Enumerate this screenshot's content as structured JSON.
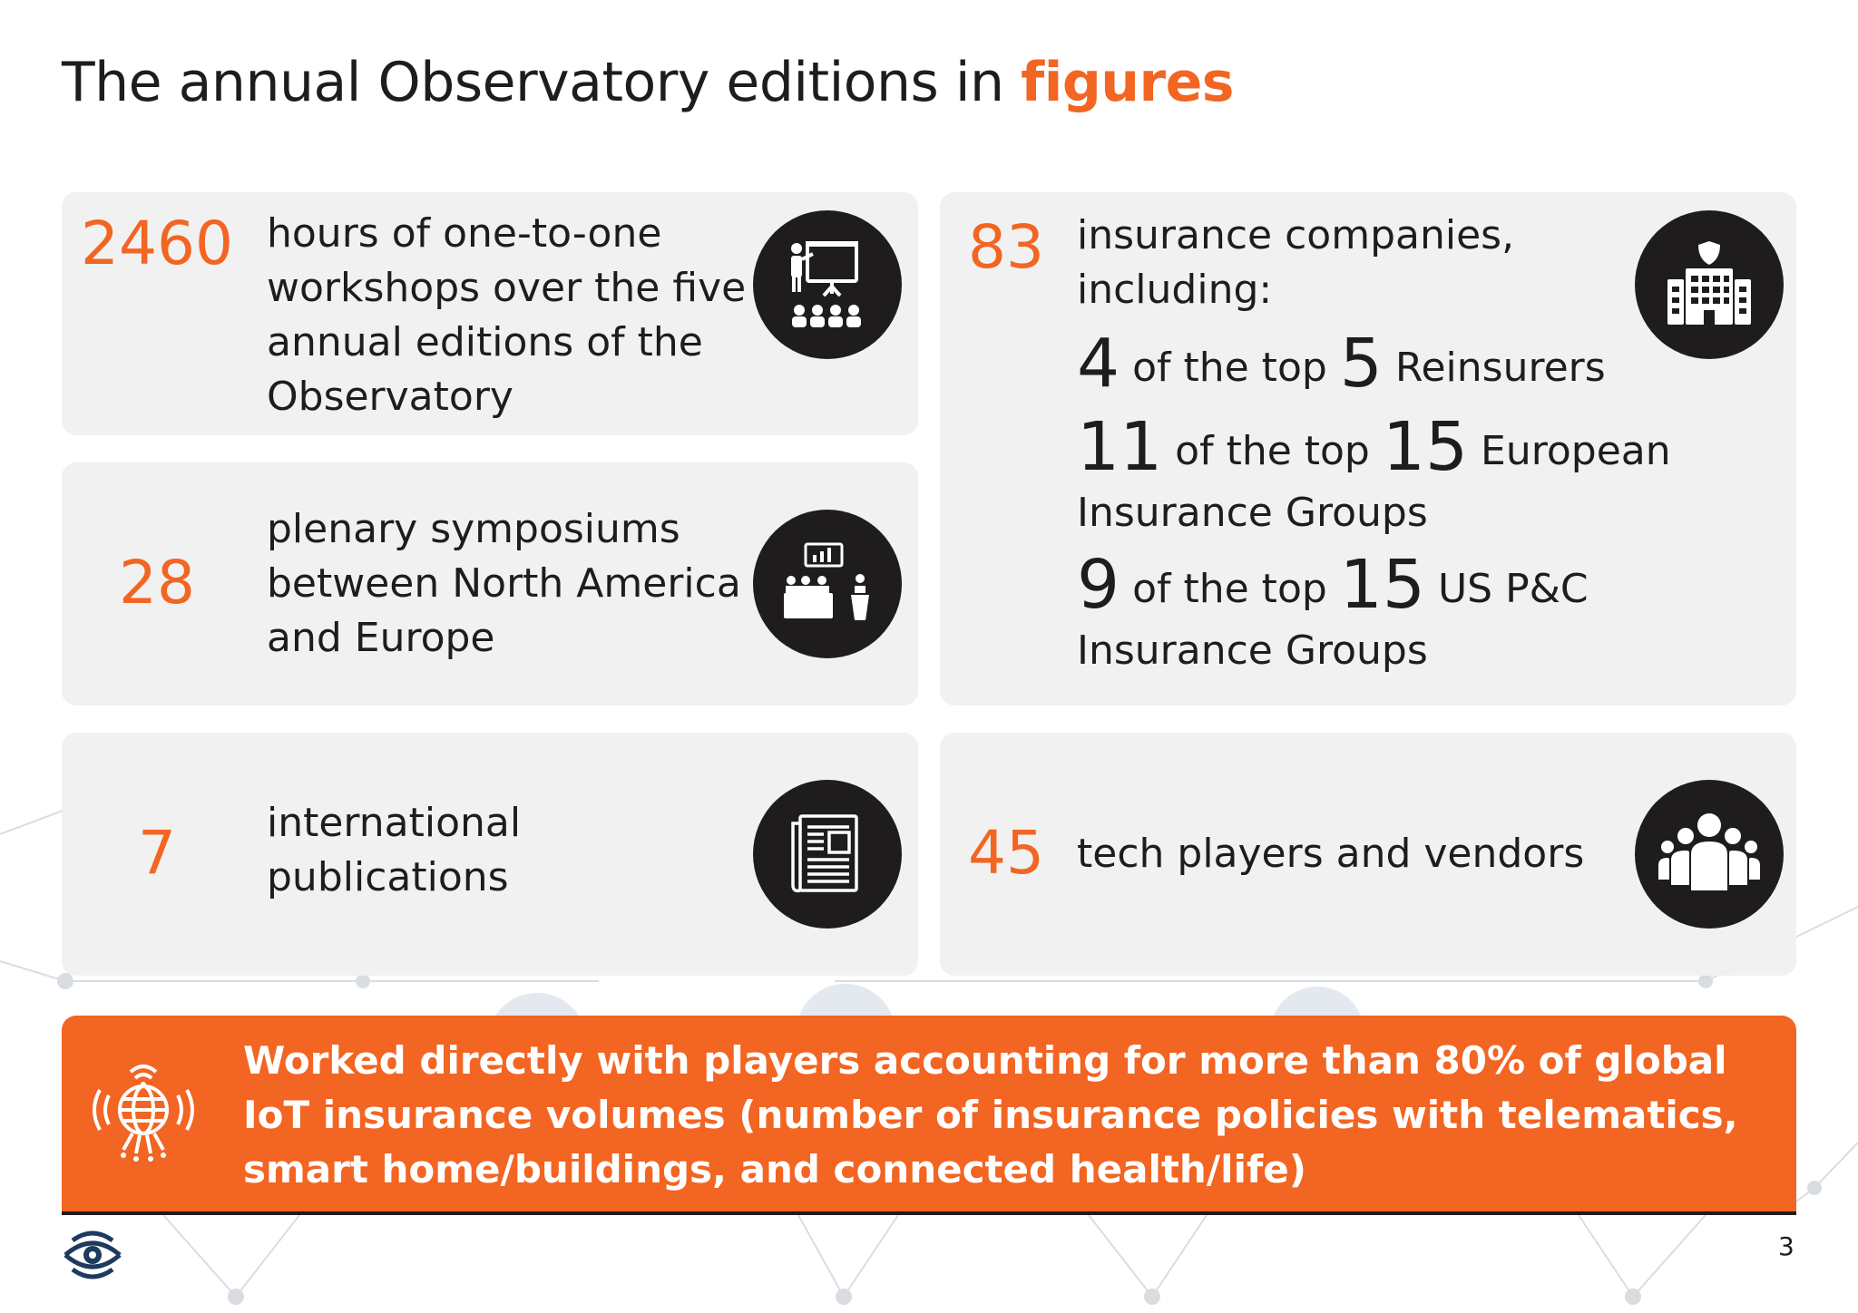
{
  "title": {
    "main": "The annual Observatory editions in",
    "accent": "figures"
  },
  "stats": [
    {
      "number": "2460",
      "text": "hours of one-to-one workshops over the five annual editions of the Observatory",
      "icon": "presentation-audience-icon"
    },
    {
      "number": "28",
      "text": "plenary symposiums between North America and Europe",
      "icon": "conference-panel-icon"
    },
    {
      "number": "7",
      "text": "international publications",
      "icon": "newspaper-icon"
    },
    {
      "number": "83",
      "text": "insurance companies, including:",
      "icon": "insurance-building-icon"
    },
    {
      "number": "45",
      "text": "tech players and vendors",
      "icon": "group-people-icon"
    }
  ],
  "insurers_breakdown": [
    {
      "count": "4",
      "mid": "of the top",
      "total": "5",
      "label": "Reinsurers",
      "label2": ""
    },
    {
      "count": "11",
      "mid": "of the top",
      "total": "15",
      "label": "European",
      "label2": "Insurance Groups"
    },
    {
      "count": "9",
      "mid": "of the top",
      "total": "15",
      "label": "US P&C",
      "label2": "Insurance Groups"
    }
  ],
  "banner": {
    "text": "Worked directly with players accounting for more than 80% of global IoT insurance volumes (number of insurance policies with telematics, smart home/buildings, and connected health/life)",
    "icon": "iot-globe-icon"
  },
  "footer": {
    "page_number": "3",
    "logo": "observatory-eye-logo"
  },
  "colors": {
    "accent": "#f26522",
    "text": "#1d1d1d",
    "card": "#f0f0f0",
    "icon_circle": "#1f1c1d"
  }
}
